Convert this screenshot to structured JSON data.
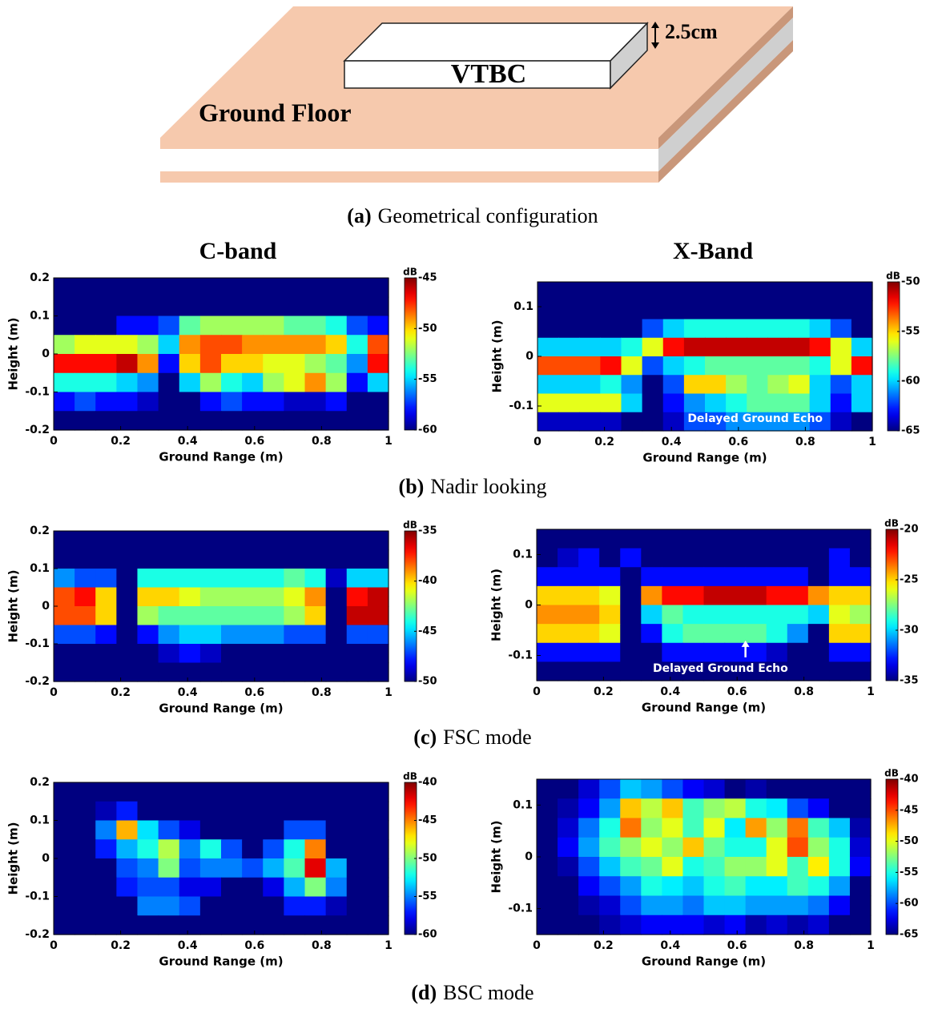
{
  "diagram": {
    "slab_label": "Ground Floor",
    "box_label": "VTBC",
    "thickness_label": "2.5cm"
  },
  "captions": [
    {
      "label": "(a)",
      "text": "Geometrical configuration"
    },
    {
      "label": "(b)",
      "text": "Nadir looking"
    },
    {
      "label": "(c)",
      "text": "FSC mode"
    },
    {
      "label": "(d)",
      "text": "BSC mode"
    }
  ],
  "column_titles": [
    "C-band",
    "X-Band"
  ],
  "chart_data": [
    {
      "type": "heatmap",
      "xlabel": "Ground Range (m)",
      "ylabel": "Height (m)",
      "colorbar_label": "dB",
      "colormap": "jet",
      "xlim": [
        0,
        1
      ],
      "ylim": [
        -0.2,
        0.2
      ],
      "xticks": [
        0,
        0.2,
        0.4,
        0.6,
        0.8,
        1
      ],
      "yticks": [
        -0.2,
        -0.1,
        0,
        0.1,
        0.2
      ],
      "zlim": [
        -60,
        -45
      ],
      "zticks": [
        -60,
        -55,
        -50,
        -45
      ],
      "z": [
        [
          -60,
          -60,
          -60,
          -60,
          -60,
          -60,
          -60,
          -60,
          -60,
          -60,
          -60,
          -60,
          -60,
          -60,
          -60,
          -60
        ],
        [
          -60,
          -60,
          -60,
          -60,
          -60,
          -60,
          -60,
          -60,
          -60,
          -60,
          -60,
          -60,
          -60,
          -60,
          -60,
          -60
        ],
        [
          -60,
          -60,
          -60,
          -58,
          -58,
          -57,
          -53,
          -52,
          -52,
          -52,
          -52,
          -53,
          -53,
          -54,
          -57,
          -58
        ],
        [
          -52,
          -51,
          -51,
          -51,
          -52,
          -55,
          -49,
          -48,
          -48,
          -49,
          -49,
          -49,
          -49,
          -50,
          -54,
          -48
        ],
        [
          -47,
          -47,
          -47,
          -46,
          -49,
          -58,
          -50,
          -48,
          -50,
          -50,
          -51,
          -51,
          -52,
          -53,
          -56,
          -47
        ],
        [
          -54,
          -54,
          -54,
          -55,
          -56,
          -60,
          -55,
          -52,
          -54,
          -55,
          -52,
          -51,
          -49,
          -52,
          -58,
          -55
        ],
        [
          -58,
          -57,
          -58,
          -58,
          -59,
          -60,
          -60,
          -58,
          -57,
          -58,
          -58,
          -59,
          -59,
          -58,
          -60,
          -60
        ],
        [
          -60,
          -60,
          -60,
          -60,
          -60,
          -60,
          -60,
          -60,
          -60,
          -60,
          -60,
          -60,
          -60,
          -60,
          -60,
          -60
        ]
      ]
    },
    {
      "type": "heatmap",
      "xlabel": "Ground Range (m)",
      "ylabel": "Height (m)",
      "colorbar_label": "dB",
      "colormap": "jet",
      "annotation": "Delayed Ground Echo",
      "xlim": [
        0,
        1
      ],
      "ylim": [
        -0.15,
        0.15
      ],
      "xticks": [
        0,
        0.2,
        0.4,
        0.6,
        0.8,
        1
      ],
      "yticks": [
        -0.1,
        0,
        0.1
      ],
      "zlim": [
        -65,
        -50
      ],
      "zticks": [
        -65,
        -60,
        -55,
        -50
      ],
      "z": [
        [
          -65,
          -65,
          -65,
          -65,
          -65,
          -65,
          -65,
          -65,
          -65,
          -65,
          -65,
          -65,
          -65,
          -65,
          -65,
          -65
        ],
        [
          -65,
          -65,
          -65,
          -65,
          -65,
          -65,
          -65,
          -65,
          -65,
          -65,
          -65,
          -65,
          -65,
          -65,
          -65,
          -65
        ],
        [
          -65,
          -65,
          -65,
          -65,
          -65,
          -62,
          -60,
          -59,
          -59,
          -59,
          -59,
          -59,
          -59,
          -60,
          -62,
          -65
        ],
        [
          -60,
          -60,
          -60,
          -60,
          -59,
          -56,
          -52,
          -51,
          -51,
          -51,
          -51,
          -51,
          -51,
          -52,
          -56,
          -60
        ],
        [
          -53,
          -53,
          -53,
          -52,
          -56,
          -62,
          -60,
          -59,
          -58,
          -58,
          -58,
          -58,
          -58,
          -59,
          -56,
          -52
        ],
        [
          -60,
          -60,
          -60,
          -59,
          -61,
          -65,
          -62,
          -55,
          -55,
          -57,
          -58,
          -57,
          -56,
          -60,
          -62,
          -60
        ],
        [
          -56,
          -56,
          -56,
          -56,
          -60,
          -65,
          -63,
          -61,
          -60,
          -59,
          -58,
          -58,
          -58,
          -60,
          -63,
          -60
        ],
        [
          -64,
          -64,
          -64,
          -64,
          -65,
          -65,
          -64,
          -62,
          -62,
          -61,
          -61,
          -61,
          -61,
          -62,
          -64,
          -65
        ]
      ]
    },
    {
      "type": "heatmap",
      "xlabel": "Ground Range (m)",
      "ylabel": "Height (m)",
      "colorbar_label": "dB",
      "colormap": "jet",
      "xlim": [
        0,
        1
      ],
      "ylim": [
        -0.2,
        0.2
      ],
      "xticks": [
        0,
        0.2,
        0.4,
        0.6,
        0.8,
        1
      ],
      "yticks": [
        -0.2,
        -0.1,
        0,
        0.1,
        0.2
      ],
      "zlim": [
        -50,
        -35
      ],
      "zticks": [
        -50,
        -45,
        -40,
        -35
      ],
      "z": [
        [
          -50,
          -50,
          -50,
          -50,
          -50,
          -50,
          -50,
          -50,
          -50,
          -50,
          -50,
          -50,
          -50,
          -50,
          -50,
          -50
        ],
        [
          -50,
          -50,
          -50,
          -50,
          -50,
          -50,
          -50,
          -50,
          -50,
          -50,
          -50,
          -50,
          -50,
          -50,
          -50,
          -50
        ],
        [
          -46,
          -47,
          -47,
          -50,
          -44,
          -44,
          -44,
          -44,
          -44,
          -44,
          -44,
          -43,
          -44,
          -49,
          -45,
          -45
        ],
        [
          -38,
          -37,
          -40,
          -50,
          -40,
          -40,
          -41,
          -42,
          -42,
          -42,
          -42,
          -41,
          -39,
          -50,
          -37,
          -36
        ],
        [
          -38,
          -38,
          -40,
          -50,
          -42,
          -43,
          -43,
          -43,
          -43,
          -43,
          -43,
          -42,
          -40,
          -50,
          -36,
          -36
        ],
        [
          -47,
          -47,
          -48,
          -50,
          -48,
          -46,
          -45,
          -45,
          -46,
          -46,
          -46,
          -47,
          -47,
          -50,
          -47,
          -47
        ],
        [
          -50,
          -50,
          -50,
          -50,
          -50,
          -49,
          -48,
          -49,
          -50,
          -50,
          -50,
          -50,
          -50,
          -50,
          -50,
          -50
        ],
        [
          -50,
          -50,
          -50,
          -50,
          -50,
          -50,
          -50,
          -50,
          -50,
          -50,
          -50,
          -50,
          -50,
          -50,
          -50,
          -50
        ]
      ]
    },
    {
      "type": "heatmap",
      "xlabel": "Ground Range (m)",
      "ylabel": "Height (m)",
      "colorbar_label": "dB",
      "colormap": "jet",
      "annotation": "Delayed Ground Echo",
      "xlim": [
        0,
        1
      ],
      "ylim": [
        -0.15,
        0.15
      ],
      "xticks": [
        0,
        0.2,
        0.4,
        0.6,
        0.8,
        1
      ],
      "yticks": [
        -0.1,
        0,
        0.1
      ],
      "zlim": [
        -35,
        -20
      ],
      "zticks": [
        -35,
        -30,
        -25,
        -20
      ],
      "z": [
        [
          -35,
          -35,
          -35,
          -35,
          -35,
          -35,
          -35,
          -35,
          -35,
          -35,
          -35,
          -35,
          -35,
          -35,
          -35,
          -35
        ],
        [
          -35,
          -34,
          -33,
          -35,
          -33,
          -35,
          -35,
          -35,
          -35,
          -35,
          -35,
          -35,
          -35,
          -35,
          -33,
          -35
        ],
        [
          -33,
          -33,
          -33,
          -33,
          -35,
          -33,
          -33,
          -33,
          -33,
          -33,
          -33,
          -33,
          -33,
          -35,
          -33,
          -33
        ],
        [
          -25,
          -25,
          -25,
          -26,
          -35,
          -24,
          -22,
          -22,
          -21,
          -21,
          -21,
          -22,
          -22,
          -24,
          -25,
          -25
        ],
        [
          -24,
          -24,
          -24,
          -25,
          -35,
          -30,
          -28,
          -29,
          -29,
          -29,
          -29,
          -29,
          -29,
          -30,
          -26,
          -27
        ],
        [
          -25,
          -25,
          -25,
          -26,
          -35,
          -33,
          -29,
          -28,
          -28,
          -28,
          -28,
          -29,
          -31,
          -35,
          -25,
          -25
        ],
        [
          -33,
          -33,
          -33,
          -33,
          -35,
          -35,
          -33,
          -33,
          -33,
          -33,
          -33,
          -34,
          -35,
          -35,
          -33,
          -33
        ],
        [
          -35,
          -35,
          -35,
          -35,
          -35,
          -35,
          -35,
          -35,
          -35,
          -35,
          -35,
          -35,
          -35,
          -35,
          -35,
          -35
        ]
      ]
    },
    {
      "type": "heatmap",
      "xlabel": "Ground Range (m)",
      "ylabel": "Height (m)",
      "colorbar_label": "dB",
      "colormap": "jet",
      "xlim": [
        0,
        1
      ],
      "ylim": [
        -0.2,
        0.2
      ],
      "xticks": [
        0,
        0.2,
        0.4,
        0.6,
        0.8,
        1
      ],
      "yticks": [
        -0.2,
        -0.1,
        0,
        0.1,
        0.2
      ],
      "zlim": [
        -60,
        -40
      ],
      "zticks": [
        -60,
        -55,
        -50,
        -45,
        -40
      ],
      "z": [
        [
          -60,
          -60,
          -60,
          -60,
          -60,
          -60,
          -60,
          -60,
          -60,
          -60,
          -60,
          -60,
          -60,
          -60,
          -60,
          -60
        ],
        [
          -60,
          -60,
          -59,
          -57,
          -60,
          -60,
          -60,
          -60,
          -60,
          -60,
          -60,
          -60,
          -60,
          -60,
          -60,
          -60
        ],
        [
          -60,
          -60,
          -55,
          -46,
          -53,
          -56,
          -58,
          -60,
          -60,
          -60,
          -60,
          -56,
          -56,
          -60,
          -60,
          -60
        ],
        [
          -60,
          -60,
          -57,
          -54,
          -52,
          -49,
          -55,
          -52,
          -56,
          -60,
          -56,
          -52,
          -45,
          -60,
          -60,
          -60
        ],
        [
          -60,
          -60,
          -60,
          -56,
          -55,
          -50,
          -56,
          -55,
          -55,
          -56,
          -54,
          -51,
          -42,
          -54,
          -60,
          -60
        ],
        [
          -60,
          -60,
          -60,
          -57,
          -56,
          -56,
          -58,
          -58,
          -60,
          -60,
          -58,
          -54,
          -50,
          -55,
          -60,
          -60
        ],
        [
          -60,
          -60,
          -60,
          -60,
          -55,
          -55,
          -56,
          -60,
          -60,
          -60,
          -60,
          -57,
          -57,
          -59,
          -60,
          -60
        ],
        [
          -60,
          -60,
          -60,
          -60,
          -60,
          -60,
          -60,
          -60,
          -60,
          -60,
          -60,
          -60,
          -60,
          -60,
          -60,
          -60
        ]
      ]
    },
    {
      "type": "heatmap",
      "xlabel": "Ground Range (m)",
      "ylabel": "Height (m)",
      "colorbar_label": "dB",
      "colormap": "jet",
      "xlim": [
        0,
        1
      ],
      "ylim": [
        -0.15,
        0.15
      ],
      "xticks": [
        0,
        0.2,
        0.4,
        0.6,
        0.8,
        1
      ],
      "yticks": [
        -0.1,
        0,
        0.1
      ],
      "zlim": [
        -65,
        -40
      ],
      "zticks": [
        -65,
        -60,
        -55,
        -50,
        -45,
        -40
      ],
      "z": [
        [
          -65,
          -65,
          -63,
          -60,
          -57,
          -58,
          -60,
          -62,
          -63,
          -65,
          -64,
          -65,
          -65,
          -65,
          -65,
          -65
        ],
        [
          -65,
          -64,
          -62,
          -58,
          -48,
          -51,
          -48,
          -54,
          -52,
          -51,
          -55,
          -56,
          -60,
          -62,
          -65,
          -65
        ],
        [
          -65,
          -63,
          -59,
          -55,
          -46,
          -52,
          -50,
          -54,
          -50,
          -56,
          -47,
          -52,
          -46,
          -54,
          -57,
          -64
        ],
        [
          -65,
          -62,
          -58,
          -54,
          -52,
          -50,
          -52,
          -48,
          -53,
          -55,
          -55,
          -50,
          -45,
          -52,
          -55,
          -63
        ],
        [
          -65,
          -64,
          -60,
          -57,
          -54,
          -53,
          -50,
          -55,
          -54,
          -52,
          -52,
          -50,
          -54,
          -49,
          -55,
          -62
        ],
        [
          -65,
          -65,
          -62,
          -60,
          -58,
          -55,
          -56,
          -57,
          -55,
          -54,
          -56,
          -56,
          -54,
          -55,
          -58,
          -65
        ],
        [
          -65,
          -65,
          -64,
          -63,
          -60,
          -58,
          -58,
          -59,
          -57,
          -57,
          -58,
          -58,
          -58,
          -59,
          -62,
          -65
        ],
        [
          -65,
          -65,
          -65,
          -64,
          -63,
          -62,
          -62,
          -62,
          -63,
          -62,
          -64,
          -63,
          -64,
          -63,
          -65,
          -65
        ]
      ]
    }
  ]
}
